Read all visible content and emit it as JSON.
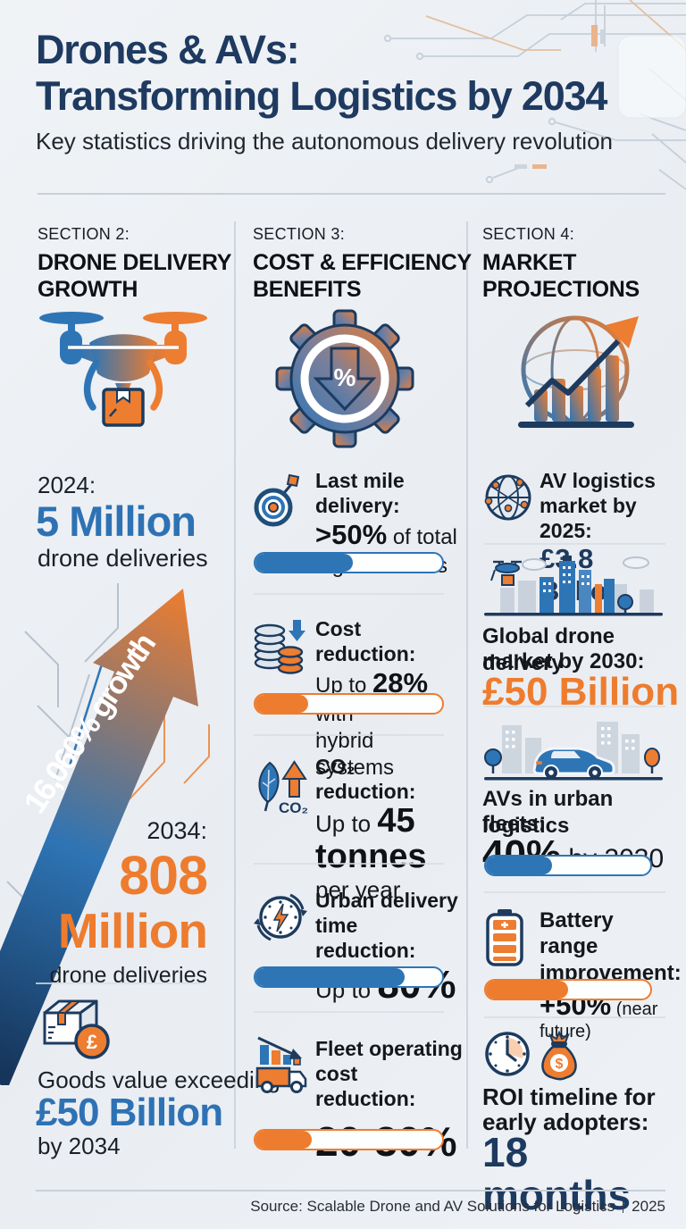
{
  "header": {
    "title_line1": "Drones & AVs:",
    "title_line2": "Transforming Logistics by 2034",
    "subtitle": "Key statistics driving the autonomous delivery revolution"
  },
  "growth": {
    "kicker": "SECTION 2:",
    "title_line1": "DRONE DELIVERY",
    "title_line2": "GROWTH",
    "y2024": {
      "label": "2024:",
      "value": "5 Million",
      "caption": "drone deliveries"
    },
    "arrow_label": "16,060% growth",
    "y2034": {
      "label": "2034:",
      "value_line1": "808",
      "value_line2": "Million",
      "caption": "drone deliveries"
    },
    "goods": {
      "caption": "Goods value exceeding",
      "value": "£50 Billion",
      "suffix": "by 2034"
    }
  },
  "benefits": {
    "kicker": "SECTION 3:",
    "title_line1": "COST & EFFICIENCY",
    "title_line2": "BENEFITS",
    "last_mile": {
      "label": "Last mile delivery:",
      "strong": ">50%",
      "post": " of total",
      "post2": "logistics costs",
      "bar_pct": 52
    },
    "cost_reduction": {
      "label": "Cost reduction:",
      "pre": "Up to ",
      "strong": "28%",
      "post": " with",
      "post2": "hybrid systems",
      "bar_pct": 28
    },
    "co2": {
      "label": "CO₂ reduction:",
      "pre": "Up to ",
      "strong": "45",
      "strong2": "tonnes",
      "post": "per year"
    },
    "urban_time": {
      "label_line1": "Urban delivery",
      "label_line2": "time reduction:",
      "pre": "Up to ",
      "strong": "80%",
      "bar_pct": 80
    },
    "fleet_cost": {
      "label_line1": "Fleet operating",
      "label_line2": "cost reduction:",
      "strong": "20-30%",
      "bar_pct": 30
    }
  },
  "market": {
    "kicker": "SECTION 4:",
    "title_line1": "MARKET",
    "title_line2": "PROJECTIONS",
    "av_market": {
      "label_line1": "AV logistics",
      "label_line2": "market by 2025:",
      "value": "£3.8 Billion"
    },
    "drone_market": {
      "label_line1": "Global drone delivery",
      "label_line2": "market by 2030:",
      "value": "£50 Billion"
    },
    "av_fleets": {
      "label_line1": "AVs in urban logistics",
      "label_line2": "fleets:",
      "strong": "40%",
      "post": " by 2030",
      "bar_pct": 40
    },
    "battery": {
      "label_line1": "Battery range",
      "label_line2": "improvement:",
      "strong": "+50%",
      "post": " (near future)",
      "bar_pct": 50
    },
    "roi": {
      "label_line1": "ROI timeline for",
      "label_line2": "early adopters:",
      "value": "18 months"
    }
  },
  "footer": {
    "source": "Source: Scalable Drone and AV Solutions for Logistics",
    "year": "2025"
  },
  "glyphs": {
    "pound": "£",
    "percent": "%",
    "co2": "CO₂",
    "dollar": "$"
  },
  "colors": {
    "navy": "#1d3a5f",
    "blue": "#2e75b6",
    "orange": "#ee7c2e",
    "background": "#edf0f4"
  },
  "chart_data": [
    {
      "type": "bar",
      "title": "Drone deliveries growth",
      "categories": [
        "2024",
        "2034"
      ],
      "values": [
        5000000,
        808000000
      ],
      "annotations": [
        "16,060% growth",
        "Goods value exceeding £50 Billion by 2034"
      ]
    },
    {
      "type": "bar",
      "title": "Cost & efficiency benefits (progress bars)",
      "categories": [
        "Last mile delivery share of logistics costs",
        "Cost reduction with hybrid systems",
        "Urban delivery time reduction",
        "Fleet operating cost reduction"
      ],
      "values": [
        52,
        28,
        80,
        30
      ],
      "ylabel": "percent",
      "ylim": [
        0,
        100
      ]
    },
    {
      "type": "bar",
      "title": "Market projections (progress bars)",
      "categories": [
        "AVs in urban logistics fleets by 2030",
        "Battery range improvement (near future)"
      ],
      "values": [
        40,
        50
      ],
      "ylabel": "percent",
      "ylim": [
        0,
        100
      ]
    }
  ]
}
